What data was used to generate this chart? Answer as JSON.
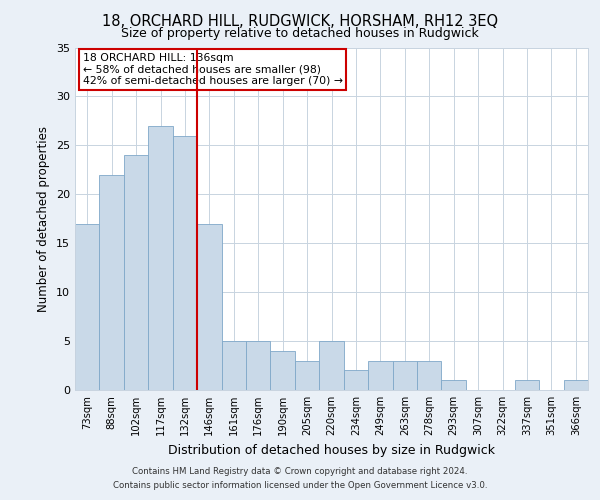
{
  "title": "18, ORCHARD HILL, RUDGWICK, HORSHAM, RH12 3EQ",
  "subtitle": "Size of property relative to detached houses in Rudgwick",
  "xlabel": "Distribution of detached houses by size in Rudgwick",
  "ylabel": "Number of detached properties",
  "categories": [
    "73sqm",
    "88sqm",
    "102sqm",
    "117sqm",
    "132sqm",
    "146sqm",
    "161sqm",
    "176sqm",
    "190sqm",
    "205sqm",
    "220sqm",
    "234sqm",
    "249sqm",
    "263sqm",
    "278sqm",
    "293sqm",
    "307sqm",
    "322sqm",
    "337sqm",
    "351sqm",
    "366sqm"
  ],
  "values": [
    17,
    22,
    24,
    27,
    26,
    17,
    5,
    5,
    4,
    3,
    5,
    2,
    3,
    3,
    3,
    1,
    0,
    0,
    1,
    0,
    1
  ],
  "bar_color": "#c9d9e8",
  "bar_edge_color": "#7fa8c9",
  "vline_x": 4.5,
  "vline_color": "#cc0000",
  "annotation_text": "18 ORCHARD HILL: 136sqm\n← 58% of detached houses are smaller (98)\n42% of semi-detached houses are larger (70) →",
  "annotation_box_color": "#cc0000",
  "ylim": [
    0,
    35
  ],
  "yticks": [
    0,
    5,
    10,
    15,
    20,
    25,
    30,
    35
  ],
  "footer_line1": "Contains HM Land Registry data © Crown copyright and database right 2024.",
  "footer_line2": "Contains public sector information licensed under the Open Government Licence v3.0.",
  "background_color": "#eaf0f7",
  "plot_background_color": "#ffffff",
  "grid_color": "#c8d4e0"
}
